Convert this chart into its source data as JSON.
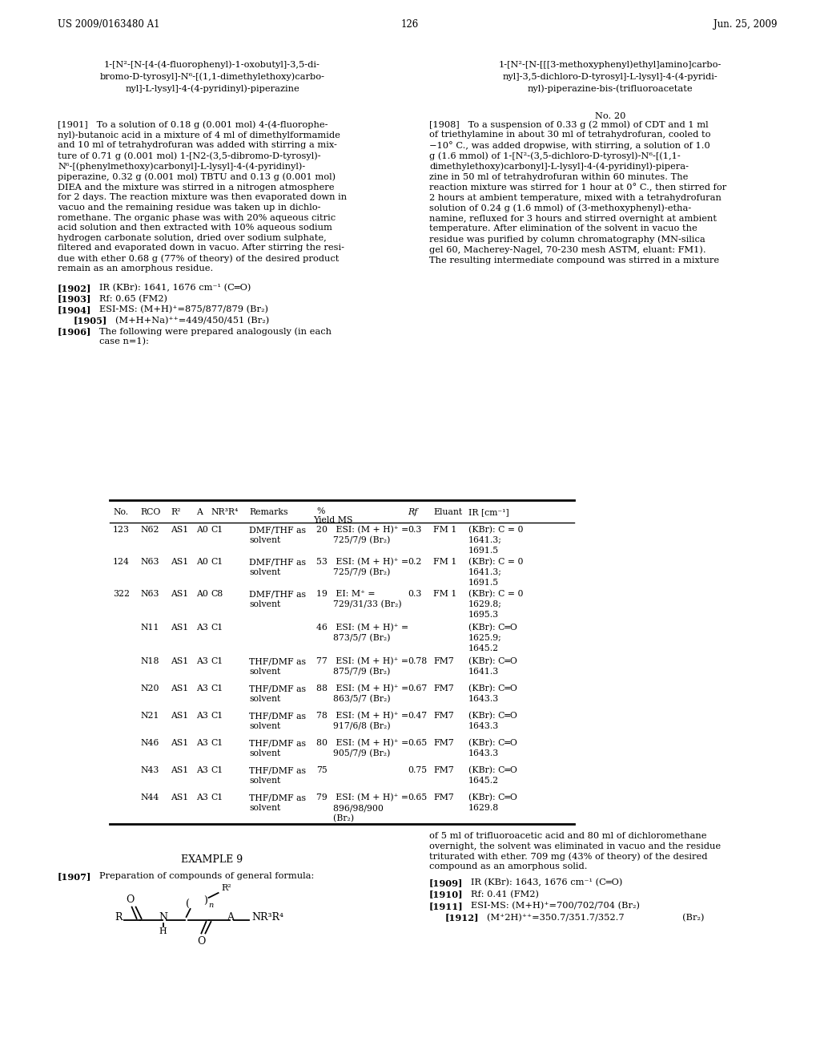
{
  "header_left": "US 2009/0163480 A1",
  "header_right": "Jun. 25, 2009",
  "page_number": "126",
  "background_color": "#ffffff",
  "left_title_line1": "1-[N²-[N-[4-(4-fluorophenyl)-1-oxobutyl]-3,5-di-",
  "left_title_line2": "bromo-D-tyrosyl]-N⁶-[(1,1-dimethylethoxy)carbo-",
  "left_title_line3": "nyl]-L-lysyl]-4-(4-pyridinyl)-piperazine",
  "right_title_line1": "1-[N²-[N-[[[3-methoxyphenyl)ethyl]amino]carbo-",
  "right_title_line2": "nyl]-3,5-dichloro-D-tyrosyl]-L-lysyl]-4-(4-pyridi-",
  "right_title_line3": "nyl)-piperazine-bis-(trifluoroacetate",
  "left_para1901": "[1901]   To a solution of 0.18 g (0.001 mol) 4-(4-fluorophe-\nnyl)-butanoic acid in a mixture of 4 ml of dimethylformamide\nand 10 ml of tetrahydrofuran was added with stirring a mix-\nture of 0.71 g (0.001 mol) 1-[N2-(3,5-dibromo-D-tyrosyl)-\nN⁶-[(phenylmethoxy)carbonyl]-L-lysyl]-4-(4-pyridinyl)-\npiperazine, 0.32 g (0.001 mol) TBTU and 0.13 g (0.001 mol)\nDIEA and the mixture was stirred in a nitrogen atmosphere\nfor 2 days. The reaction mixture was then evaporated down in\nvacuo and the remaining residue was taken up in dichlo-\nromethane. The organic phase was with 20% aqueous citric\nacid solution and then extracted with 10% aqueous sodium\nhydrogen carbonate solution, dried over sodium sulphate,\nfiltered and evaporated down in vacuo. After stirring the resi-\ndue with ether 0.68 g (77% of theory) of the desired product\nremain as an amorphous residue.",
  "right_para1908": "[1908]   To a suspension of 0.33 g (2 mmol) of CDT and 1 ml\nof triethylamine in about 30 ml of tetrahydrofuran, cooled to\n−10° C., was added dropwise, with stirring, a solution of 1.0\ng (1.6 mmol) of 1-[N²-(3,5-dichloro-D-tyrosyl)-N⁶-[(1,1-\ndimethylethoxy)carbonyl]-L-lysyl]-4-(4-pyridinyl)-pipera-\nzine in 50 ml of tetrahydrofuran within 60 minutes. The\nreaction mixture was stirred for 1 hour at 0° C., then stirred for\n2 hours at ambient temperature, mixed with a tetrahydrofuran\nsolution of 0.24 g (1.6 mmol) of (3-methoxyphenyl)-etha-\nnamine, refluxed for 3 hours and stirred overnight at ambient\ntemperature. After elimination of the solvent in vacuo the\nresidue was purified by column chromatography (MN-silica\ngel 60, Macherey-Nagel, 70-230 mesh ASTM, eluant: FM1).\nThe resulting intermediate compound was stirred in a mixture",
  "right_bottom_para": "of 5 ml of trifluoroacetic acid and 80 ml of dichloromethane\novernight, the solvent was eliminated in vacuo and the residue\ntriturated with ether. 709 mg (43% of theory) of the desired\ncompound as an amorphous solid."
}
